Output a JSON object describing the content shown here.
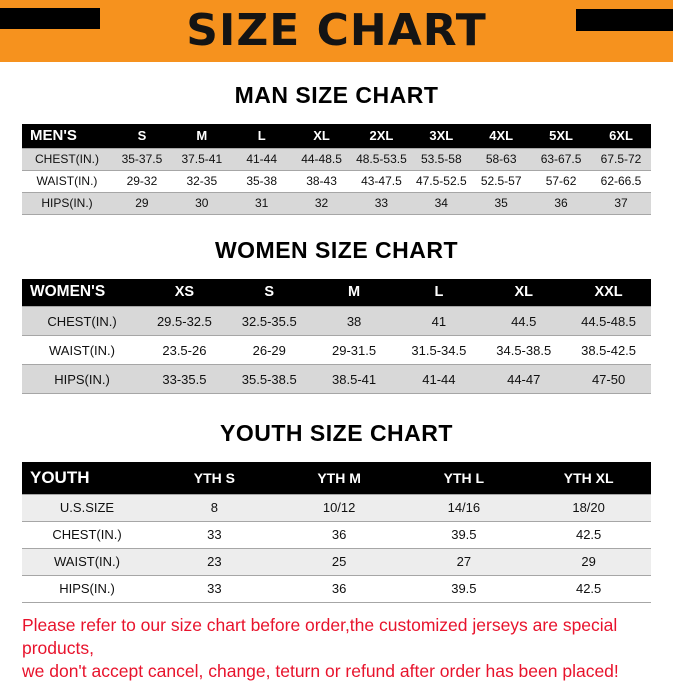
{
  "banner": {
    "title": "SIZE CHART",
    "bg_color": "#F6921E",
    "corner_bar_color": "#000000"
  },
  "sections": [
    {
      "id": "men",
      "heading": "MAN SIZE CHART",
      "table": {
        "header": [
          "MEN'S",
          "S",
          "M",
          "L",
          "XL",
          "2XL",
          "3XL",
          "4XL",
          "5XL",
          "6XL"
        ],
        "rows": [
          [
            "CHEST(IN.)",
            "35-37.5",
            "37.5-41",
            "41-44",
            "44-48.5",
            "48.5-53.5",
            "53.5-58",
            "58-63",
            "63-67.5",
            "67.5-72"
          ],
          [
            "WAIST(IN.)",
            "29-32",
            "32-35",
            "35-38",
            "38-43",
            "43-47.5",
            "47.5-52.5",
            "52.5-57",
            "57-62",
            "62-66.5"
          ],
          [
            "HIPS(IN.)",
            "29",
            "30",
            "31",
            "32",
            "33",
            "34",
            "35",
            "36",
            "37"
          ]
        ]
      }
    },
    {
      "id": "women",
      "heading": "WOMEN SIZE CHART",
      "table": {
        "header": [
          "WOMEN'S",
          "XS",
          "S",
          "M",
          "L",
          "XL",
          "XXL"
        ],
        "rows": [
          [
            "CHEST(IN.)",
            "29.5-32.5",
            "32.5-35.5",
            "38",
            "41",
            "44.5",
            "44.5-48.5"
          ],
          [
            "WAIST(IN.)",
            "23.5-26",
            "26-29",
            "29-31.5",
            "31.5-34.5",
            "34.5-38.5",
            "38.5-42.5"
          ],
          [
            "HIPS(IN.)",
            "33-35.5",
            "35.5-38.5",
            "38.5-41",
            "41-44",
            "44-47",
            "47-50"
          ]
        ]
      }
    },
    {
      "id": "youth",
      "heading": "YOUTH SIZE CHART",
      "table": {
        "header": [
          "YOUTH",
          "YTH S",
          "YTH M",
          "YTH L",
          "YTH XL"
        ],
        "rows": [
          [
            "U.S.SIZE",
            "8",
            "10/12",
            "14/16",
            "18/20"
          ],
          [
            "CHEST(IN.)",
            "33",
            "36",
            "39.5",
            "42.5"
          ],
          [
            "WAIST(IN.)",
            "23",
            "25",
            "27",
            "29"
          ],
          [
            "HIPS(IN.)",
            "33",
            "36",
            "39.5",
            "42.5"
          ]
        ]
      }
    }
  ],
  "footer": {
    "lines": [
      "Please refer to our size chart before order,the customized jerseys are special products,",
      "we don't accept cancel, change, teturn or refund after order has been placed!"
    ],
    "color": "#E8132C"
  },
  "colors": {
    "table_header_bg": "#000000",
    "table_header_text": "#FFFFFF",
    "row_alt_dark": "#D8D8D8",
    "row_alt_light": "#EDEDED"
  }
}
